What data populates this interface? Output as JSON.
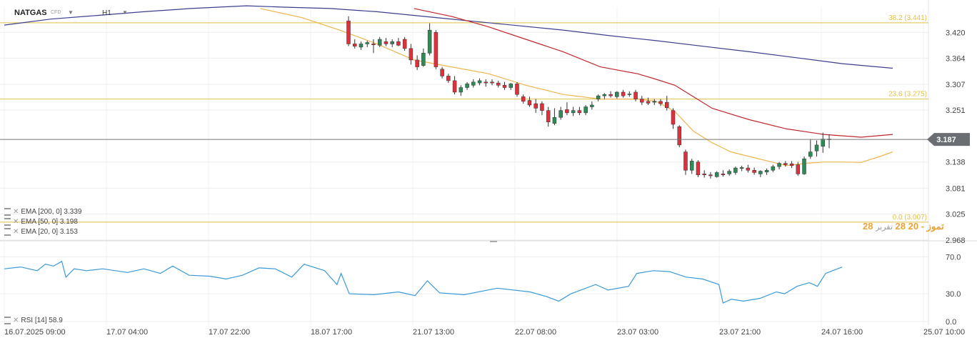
{
  "header": {
    "symbol": "NATGAS",
    "symbol_type": "CFD",
    "timeframe": "H1"
  },
  "price_axis": {
    "ticks": [
      "3.420",
      "3.364",
      "3.307",
      "3.251",
      "3.138",
      "3.081",
      "3.025",
      "2.968"
    ]
  },
  "current_price": {
    "label": "3.187",
    "value": 3.187
  },
  "fib_levels": [
    {
      "label": "38.2 (3.441)",
      "value": 3.441
    },
    {
      "label": "23.6 (3.275)",
      "value": 3.275
    },
    {
      "label": "0.0 (3.007)",
      "value": 3.007
    }
  ],
  "indicators": {
    "ema200": "EMA [200, 0] 3.339",
    "ema50": "EMA [50, 0] 3.198",
    "ema20": "EMA [20, 0] 3.153",
    "rsi": "RSI [14] 58.9"
  },
  "rsi_axis": {
    "ticks": [
      "70.0",
      "30.0",
      "0.0"
    ]
  },
  "time_axis": {
    "ticks": [
      "16.07.2025  09:00",
      "17.07  04:00",
      "17.07  22:00",
      "18.07  17:00",
      "21.07  13:00",
      "22.07  08:00",
      "23.07  03:00",
      "23.07  21:00",
      "24.07  16:00",
      "25.07  10:00"
    ]
  },
  "watermark": {
    "number_left": "28",
    "text": "تموز - 20",
    "number_right": "28",
    "text_gray": "تقرير"
  },
  "colors": {
    "up": "#2e8b57",
    "down": "#e0303c",
    "ema20": "#f0b44c",
    "ema50": "#c0282e",
    "ema200": "#3b3f8f",
    "fib": "#e2c14a",
    "rsi": "#3a9ad9",
    "price_tag": "#6a6e73"
  },
  "chart_data": {
    "type": "candlestick",
    "symbol": "NATGAS",
    "interval": "H1",
    "y_range": [
      2.968,
      3.475
    ],
    "fib_levels": [
      3.441,
      3.275,
      3.007
    ],
    "current_price": 3.187,
    "candles": [
      [
        3.445,
        3.455,
        3.39,
        3.395
      ],
      [
        3.395,
        3.405,
        3.385,
        3.39
      ],
      [
        3.388,
        3.4,
        3.382,
        3.395
      ],
      [
        3.395,
        3.402,
        3.388,
        3.398
      ],
      [
        3.395,
        3.405,
        3.375,
        3.393
      ],
      [
        3.392,
        3.41,
        3.388,
        3.405
      ],
      [
        3.4,
        3.408,
        3.39,
        3.395
      ],
      [
        3.395,
        3.405,
        3.388,
        3.4
      ],
      [
        3.4,
        3.408,
        3.39,
        3.392
      ],
      [
        3.405,
        3.41,
        3.38,
        3.385
      ],
      [
        3.385,
        3.395,
        3.35,
        3.36
      ],
      [
        3.36,
        3.37,
        3.338,
        3.345
      ],
      [
        3.348,
        3.385,
        3.345,
        3.375
      ],
      [
        3.375,
        3.44,
        3.37,
        3.425
      ],
      [
        3.42,
        3.425,
        3.34,
        3.345
      ],
      [
        3.34,
        3.345,
        3.32,
        3.325
      ],
      [
        3.325,
        3.33,
        3.31,
        3.315
      ],
      [
        3.315,
        3.325,
        3.285,
        3.29
      ],
      [
        3.29,
        3.305,
        3.282,
        3.3
      ],
      [
        3.3,
        3.312,
        3.295,
        3.308
      ],
      [
        3.305,
        3.318,
        3.3,
        3.312
      ],
      [
        3.31,
        3.32,
        3.305,
        3.315
      ],
      [
        3.312,
        3.318,
        3.302,
        3.31
      ],
      [
        3.312,
        3.318,
        3.305,
        3.31
      ],
      [
        3.31,
        3.315,
        3.3,
        3.305
      ],
      [
        3.305,
        3.312,
        3.295,
        3.3
      ],
      [
        3.3,
        3.31,
        3.295,
        3.308
      ],
      [
        3.308,
        3.312,
        3.28,
        3.285
      ],
      [
        3.28,
        3.285,
        3.265,
        3.27
      ],
      [
        3.272,
        3.28,
        3.258,
        3.262
      ],
      [
        3.265,
        3.275,
        3.245,
        3.255
      ],
      [
        3.265,
        3.27,
        3.24,
        3.25
      ],
      [
        3.25,
        3.258,
        3.215,
        3.225
      ],
      [
        3.222,
        3.255,
        3.218,
        3.235
      ],
      [
        3.235,
        3.258,
        3.23,
        3.25
      ],
      [
        3.252,
        3.268,
        3.24,
        3.245
      ],
      [
        3.245,
        3.258,
        3.238,
        3.25
      ],
      [
        3.25,
        3.258,
        3.24,
        3.245
      ],
      [
        3.245,
        3.262,
        3.24,
        3.258
      ],
      [
        3.258,
        3.27,
        3.252,
        3.262
      ],
      [
        3.275,
        3.285,
        3.27,
        3.282
      ],
      [
        3.282,
        3.288,
        3.275,
        3.285
      ],
      [
        3.285,
        3.292,
        3.278,
        3.282
      ],
      [
        3.28,
        3.292,
        3.276,
        3.29
      ],
      [
        3.29,
        3.295,
        3.278,
        3.282
      ],
      [
        3.285,
        3.292,
        3.28,
        3.286
      ],
      [
        3.29,
        3.295,
        3.27,
        3.275
      ],
      [
        3.275,
        3.282,
        3.262,
        3.268
      ],
      [
        3.27,
        3.278,
        3.262,
        3.266
      ],
      [
        3.268,
        3.275,
        3.262,
        3.27
      ],
      [
        3.27,
        3.275,
        3.26,
        3.265
      ],
      [
        3.268,
        3.282,
        3.25,
        3.256
      ],
      [
        3.25,
        3.255,
        3.21,
        3.22
      ],
      [
        3.215,
        3.218,
        3.17,
        3.175
      ],
      [
        3.16,
        3.165,
        3.11,
        3.12
      ],
      [
        3.12,
        3.145,
        3.112,
        3.14
      ],
      [
        3.138,
        3.142,
        3.105,
        3.11
      ],
      [
        3.112,
        3.12,
        3.104,
        3.11
      ],
      [
        3.11,
        3.116,
        3.102,
        3.108
      ],
      [
        3.106,
        3.118,
        3.104,
        3.115
      ],
      [
        3.112,
        3.12,
        3.106,
        3.11
      ],
      [
        3.112,
        3.122,
        3.108,
        3.118
      ],
      [
        3.115,
        3.128,
        3.11,
        3.125
      ],
      [
        3.124,
        3.13,
        3.118,
        3.126
      ],
      [
        3.125,
        3.132,
        3.115,
        3.12
      ],
      [
        3.12,
        3.126,
        3.11,
        3.115
      ],
      [
        3.112,
        3.12,
        3.105,
        3.118
      ],
      [
        3.116,
        3.124,
        3.11,
        3.12
      ],
      [
        3.12,
        3.132,
        3.116,
        3.128
      ],
      [
        3.128,
        3.138,
        3.122,
        3.135
      ],
      [
        3.135,
        3.14,
        3.128,
        3.132
      ],
      [
        3.134,
        3.14,
        3.125,
        3.13
      ],
      [
        3.132,
        3.138,
        3.108,
        3.112
      ],
      [
        3.112,
        3.15,
        3.11,
        3.145
      ],
      [
        3.15,
        3.188,
        3.145,
        3.16
      ],
      [
        3.162,
        3.185,
        3.15,
        3.175
      ],
      [
        3.172,
        3.202,
        3.158,
        3.188
      ],
      [
        3.188,
        3.198,
        3.168,
        3.187
      ]
    ],
    "ema20": [
      [
        0.275,
        3.472
      ],
      [
        0.32,
        3.452
      ],
      [
        0.36,
        3.425
      ],
      [
        0.4,
        3.395
      ],
      [
        0.44,
        3.36
      ],
      [
        0.48,
        3.345
      ],
      [
        0.52,
        3.33
      ],
      [
        0.56,
        3.305
      ],
      [
        0.6,
        3.285
      ],
      [
        0.64,
        3.275
      ],
      [
        0.68,
        3.275
      ],
      [
        0.7,
        3.27
      ],
      [
        0.72,
        3.248
      ],
      [
        0.74,
        3.205
      ],
      [
        0.76,
        3.18
      ],
      [
        0.78,
        3.16
      ],
      [
        0.8,
        3.15
      ],
      [
        0.82,
        3.14
      ],
      [
        0.84,
        3.13
      ],
      [
        0.86,
        3.135
      ],
      [
        0.88,
        3.138
      ],
      [
        0.9,
        3.138
      ],
      [
        0.92,
        3.137
      ],
      [
        0.94,
        3.15
      ],
      [
        0.954,
        3.16
      ]
    ],
    "ema50": [
      [
        0.44,
        3.472
      ],
      [
        0.48,
        3.455
      ],
      [
        0.52,
        3.432
      ],
      [
        0.56,
        3.405
      ],
      [
        0.6,
        3.378
      ],
      [
        0.64,
        3.345
      ],
      [
        0.68,
        3.33
      ],
      [
        0.7,
        3.318
      ],
      [
        0.72,
        3.305
      ],
      [
        0.74,
        3.28
      ],
      [
        0.76,
        3.255
      ],
      [
        0.8,
        3.23
      ],
      [
        0.84,
        3.21
      ],
      [
        0.88,
        3.198
      ],
      [
        0.92,
        3.192
      ],
      [
        0.954,
        3.198
      ]
    ],
    "ema200": [
      [
        0.0,
        3.436
      ],
      [
        0.05,
        3.449
      ],
      [
        0.1,
        3.457
      ],
      [
        0.15,
        3.465
      ],
      [
        0.2,
        3.472
      ],
      [
        0.26,
        3.478
      ],
      [
        0.3,
        3.475
      ],
      [
        0.35,
        3.472
      ],
      [
        0.4,
        3.465
      ],
      [
        0.45,
        3.455
      ],
      [
        0.5,
        3.445
      ],
      [
        0.55,
        3.435
      ],
      [
        0.6,
        3.425
      ],
      [
        0.65,
        3.413
      ],
      [
        0.7,
        3.402
      ],
      [
        0.75,
        3.39
      ],
      [
        0.8,
        3.378
      ],
      [
        0.85,
        3.365
      ],
      [
        0.9,
        3.352
      ],
      [
        0.954,
        3.342
      ]
    ],
    "rsi": {
      "range": [
        -4,
        85
      ],
      "values": [
        [
          0.0,
          57
        ],
        [
          0.02,
          59
        ],
        [
          0.04,
          55
        ],
        [
          0.05,
          62
        ],
        [
          0.06,
          60
        ],
        [
          0.07,
          65
        ],
        [
          0.075,
          48
        ],
        [
          0.085,
          57
        ],
        [
          0.1,
          55
        ],
        [
          0.12,
          57
        ],
        [
          0.15,
          53
        ],
        [
          0.17,
          57
        ],
        [
          0.19,
          52
        ],
        [
          0.205,
          60
        ],
        [
          0.225,
          50
        ],
        [
          0.25,
          49
        ],
        [
          0.27,
          46
        ],
        [
          0.29,
          50
        ],
        [
          0.31,
          58
        ],
        [
          0.33,
          57
        ],
        [
          0.35,
          48
        ],
        [
          0.365,
          62
        ],
        [
          0.39,
          55
        ],
        [
          0.405,
          40
        ],
        [
          0.41,
          52
        ],
        [
          0.42,
          30
        ],
        [
          0.45,
          29
        ],
        [
          0.48,
          32
        ],
        [
          0.5,
          28
        ],
        [
          0.515,
          44
        ],
        [
          0.53,
          31
        ],
        [
          0.56,
          29
        ],
        [
          0.6,
          36
        ],
        [
          0.64,
          32
        ],
        [
          0.66,
          27
        ],
        [
          0.675,
          22
        ],
        [
          0.69,
          30
        ],
        [
          0.72,
          40
        ],
        [
          0.735,
          34
        ],
        [
          0.76,
          38
        ],
        [
          0.77,
          52
        ],
        [
          0.79,
          55
        ],
        [
          0.81,
          54
        ],
        [
          0.83,
          48
        ],
        [
          0.85,
          46
        ],
        [
          0.87,
          40
        ],
        [
          0.875,
          20
        ],
        [
          0.885,
          24
        ],
        [
          0.9,
          22
        ],
        [
          0.92,
          25
        ],
        [
          0.94,
          32
        ],
        [
          0.95,
          30
        ],
        [
          0.965,
          38
        ],
        [
          0.98,
          42
        ],
        [
          0.99,
          38
        ],
        [
          1.0,
          52
        ],
        [
          1.02,
          58.9
        ]
      ]
    }
  }
}
